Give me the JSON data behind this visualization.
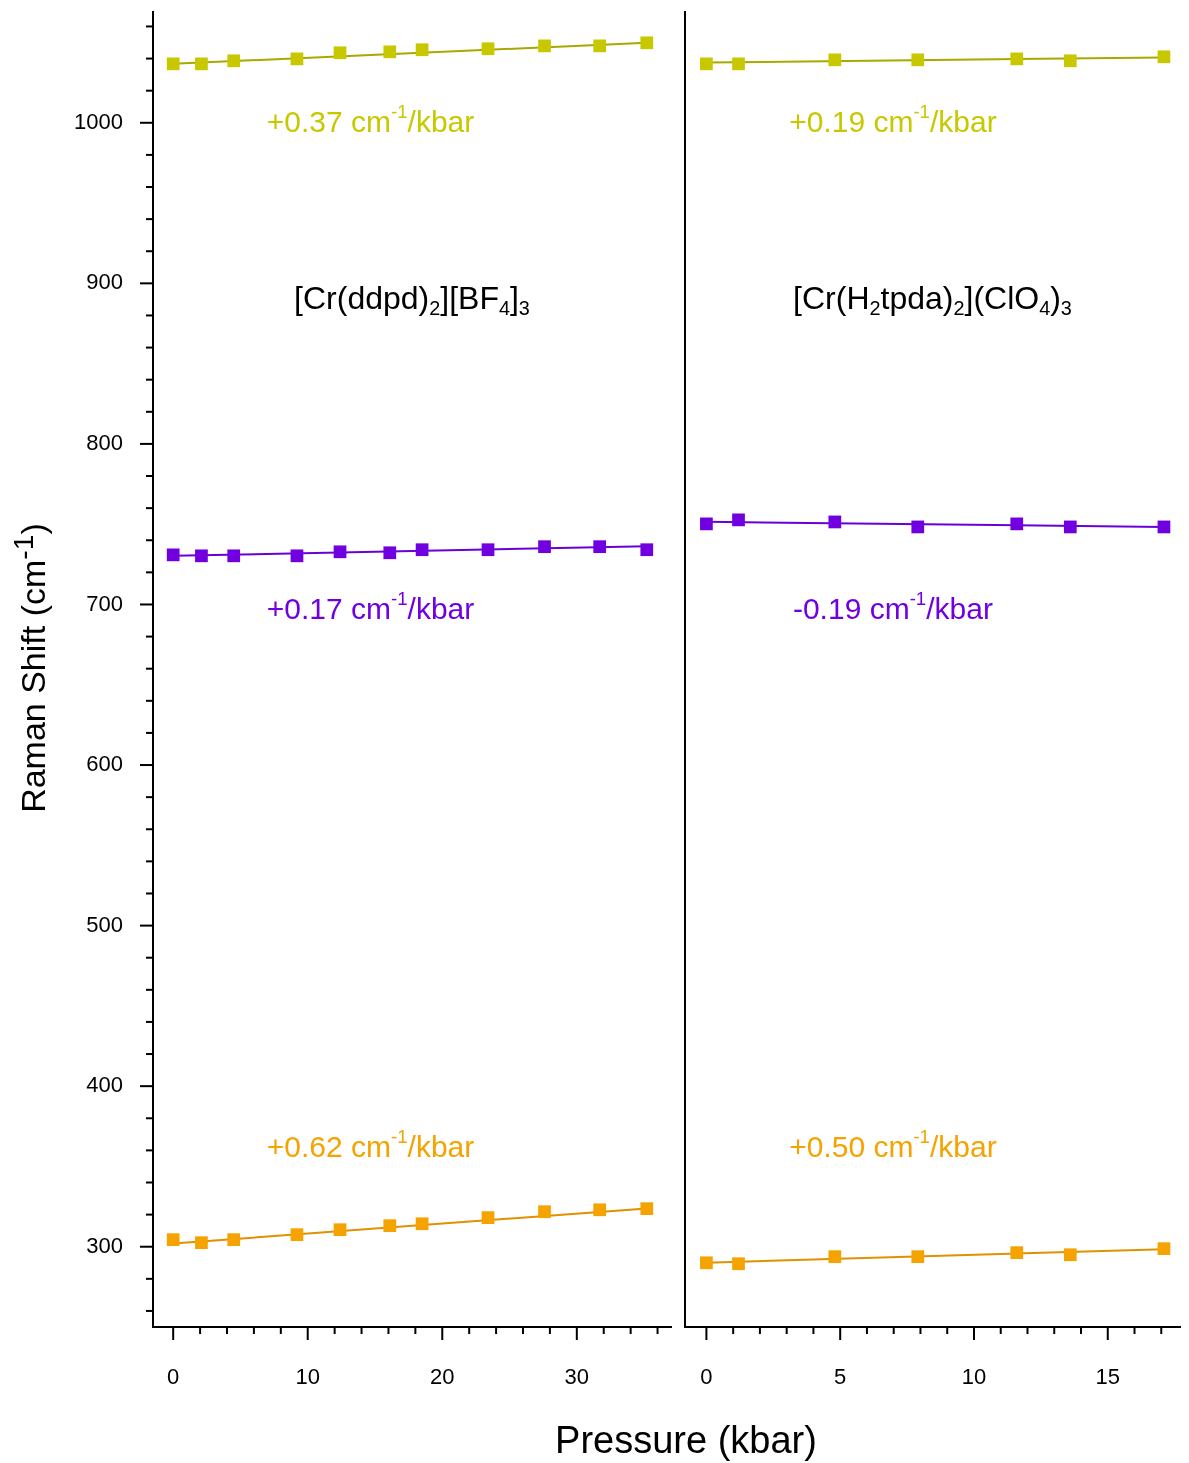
{
  "chart_data": [
    {
      "type": "scatter",
      "title": "[Cr(ddpd)$_{2}$][BF$_{4}$]$_{3}$",
      "xlabel": "Pressure (kbar)",
      "ylabel": "Raman Shift (cm$^{-1}$)",
      "marker": "square",
      "xlim": [
        -1.5,
        37
      ],
      "xticks": [
        0,
        {
          "value": 2,
          "label": null
        },
        {
          "value": 4,
          "label": null
        },
        {
          "value": 6,
          "label": null
        },
        {
          "value": 8,
          "label": null
        },
        10,
        {
          "value": 12,
          "label": null
        },
        {
          "value": 14,
          "label": null
        },
        {
          "value": 16,
          "label": null
        },
        {
          "value": 18,
          "label": null
        },
        20,
        {
          "value": 22,
          "label": null
        },
        {
          "value": 24,
          "label": null
        },
        {
          "value": 26,
          "label": null
        },
        {
          "value": 28,
          "label": null
        },
        30,
        {
          "value": 32,
          "label": null
        },
        {
          "value": 34,
          "label": null
        },
        {
          "value": 36,
          "label": null
        }
      ],
      "ylim": [
        250,
        1069
      ],
      "yticks": [
        {
          "value": 260,
          "label": null
        },
        {
          "value": 280,
          "label": null
        },
        300,
        {
          "value": 320,
          "label": null
        },
        {
          "value": 340,
          "label": null
        },
        {
          "value": 360,
          "label": null
        },
        {
          "value": 380,
          "label": null
        },
        400,
        {
          "value": 420,
          "label": null
        },
        {
          "value": 440,
          "label": null
        },
        {
          "value": 460,
          "label": null
        },
        {
          "value": 480,
          "label": null
        },
        500,
        {
          "value": 520,
          "label": null
        },
        {
          "value": 540,
          "label": null
        },
        {
          "value": 560,
          "label": null
        },
        {
          "value": 580,
          "label": null
        },
        600,
        {
          "value": 620,
          "label": null
        },
        {
          "value": 640,
          "label": null
        },
        {
          "value": 660,
          "label": null
        },
        {
          "value": 680,
          "label": null
        },
        700,
        {
          "value": 720,
          "label": null
        },
        {
          "value": 740,
          "label": null
        },
        {
          "value": 760,
          "label": null
        },
        {
          "value": 780,
          "label": null
        },
        800,
        {
          "value": 820,
          "label": null
        },
        {
          "value": 840,
          "label": null
        },
        {
          "value": 860,
          "label": null
        },
        {
          "value": 880,
          "label": null
        },
        900,
        {
          "value": 920,
          "label": null
        },
        {
          "value": 940,
          "label": null
        },
        {
          "value": 960,
          "label": null
        },
        {
          "value": 980,
          "label": null
        },
        1000,
        {
          "value": 1020,
          "label": null
        },
        {
          "value": 1040,
          "label": null
        },
        {
          "value": 1060,
          "label": null
        }
      ],
      "series": [
        {
          "color": "#c8c800",
          "x": [
            0,
            2.1,
            4.5,
            9.2,
            12.4,
            16.1,
            18.5,
            23.4,
            27.6,
            31.7,
            35.2
          ],
          "values": [
            1036.7,
            1036.7,
            1038.6,
            1039.8,
            1043.6,
            1044.2,
            1045.5,
            1046.1,
            1047.9,
            1047.9,
            1049.8
          ]
        },
        {
          "type": "line",
          "marker": "none",
          "color": "#a8a800",
          "x": [
            0,
            35.2
          ],
          "values": [
            1036.8,
            1049.8
          ]
        },
        {
          "color": "#7000e0",
          "x": [
            0,
            2.1,
            4.5,
            9.2,
            12.4,
            16.1,
            18.5,
            23.4,
            27.6,
            31.7,
            35.2
          ],
          "values": [
            730.9,
            730.3,
            730.3,
            730.3,
            732.8,
            732.2,
            734.1,
            734.1,
            736.0,
            736.0,
            734.1
          ]
        },
        {
          "type": "line",
          "marker": "none",
          "color": "#6a00d8",
          "x": [
            0,
            35.2
          ],
          "values": [
            730.3,
            736.3
          ]
        },
        {
          "color": "#f5a300",
          "x": [
            0,
            2.1,
            4.5,
            9.2,
            12.4,
            16.1,
            18.5,
            23.4,
            27.6,
            31.7,
            35.2
          ],
          "values": [
            304.4,
            302.5,
            304.4,
            307.5,
            310.6,
            313.1,
            314.3,
            318.1,
            321.8,
            323.0,
            323.7
          ]
        },
        {
          "type": "line",
          "marker": "none",
          "color": "#e09000",
          "x": [
            0,
            35.2
          ],
          "values": [
            302.0,
            323.8
          ]
        }
      ],
      "annotations": [
        "+0.37 cm$^{-1}$/kbar",
        "+0.17 cm$^{-1}$/kbar",
        "+0.62 cm$^{-1}$/kbar"
      ]
    },
    {
      "type": "scatter",
      "title": "[Cr(H$_{2}$tpda)$_{2}$](ClO$_{4}$)$_{3}$",
      "marker": "square",
      "tick_labels": "x",
      "xlim": [
        -0.8,
        17.7
      ],
      "xticks": [
        0,
        {
          "value": 1,
          "label": null
        },
        {
          "value": 2,
          "label": null
        },
        {
          "value": 3,
          "label": null
        },
        {
          "value": 4,
          "label": null
        },
        5,
        {
          "value": 6,
          "label": null
        },
        {
          "value": 7,
          "label": null
        },
        {
          "value": 8,
          "label": null
        },
        {
          "value": 9,
          "label": null
        },
        10,
        {
          "value": 11,
          "label": null
        },
        {
          "value": 12,
          "label": null
        },
        {
          "value": 13,
          "label": null
        },
        {
          "value": 14,
          "label": null
        },
        15,
        {
          "value": 16,
          "label": null
        },
        {
          "value": 17,
          "label": null
        }
      ],
      "ylim": [
        250,
        1069
      ],
      "series": [
        {
          "color": "#c8c800",
          "x": [
            0,
            1.2,
            4.8,
            7.9,
            11.6,
            13.6,
            17.1
          ],
          "values": [
            1036.7,
            1036.7,
            1039.2,
            1039.2,
            1039.8,
            1038.6,
            1041.1
          ]
        },
        {
          "type": "line",
          "marker": "none",
          "color": "#a8a800",
          "x": [
            0,
            17.1
          ],
          "values": [
            1037.5,
            1040.7
          ]
        },
        {
          "color": "#7000e0",
          "x": [
            0,
            1.2,
            4.8,
            7.9,
            11.6,
            13.6,
            17.1
          ],
          "values": [
            750.2,
            752.7,
            751.4,
            748.3,
            750.2,
            748.3,
            748.3
          ]
        },
        {
          "type": "line",
          "marker": "none",
          "color": "#6a00d8",
          "x": [
            0,
            17.1
          ],
          "values": [
            751.5,
            748.3
          ]
        },
        {
          "color": "#f5a300",
          "x": [
            0,
            1.2,
            4.8,
            7.9,
            11.6,
            13.6,
            17.1
          ],
          "values": [
            290.0,
            289.4,
            293.8,
            293.8,
            296.3,
            295.0,
            298.8
          ]
        },
        {
          "type": "line",
          "marker": "none",
          "color": "#e09000",
          "x": [
            0,
            17.1
          ],
          "values": [
            290.0,
            298.5
          ]
        }
      ],
      "annotations": [
        "+0.19 cm$^{-1}$/kbar",
        "-0.19 cm$^{-1}$/kbar",
        "+0.50 cm$^{-1}$/kbar"
      ]
    }
  ]
}
